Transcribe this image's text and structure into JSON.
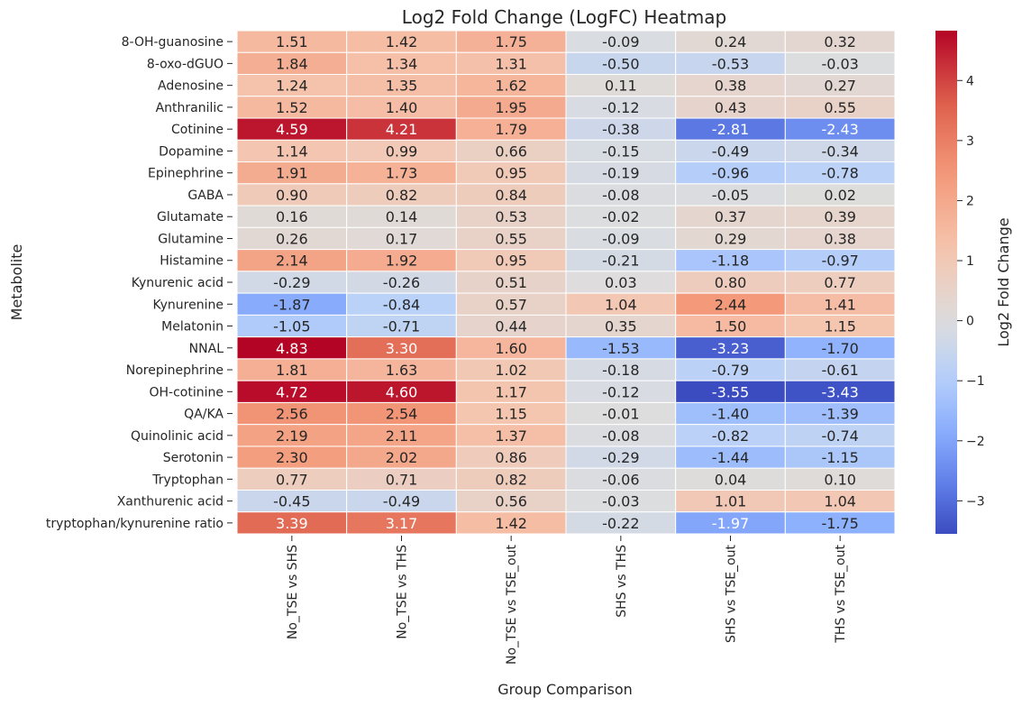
{
  "chart_data": {
    "type": "heatmap",
    "title": "Log2 Fold Change (LogFC) Heatmap",
    "xlabel": "Group Comparison",
    "ylabel": "Metabolite",
    "colorbar_label": "Log2 Fold Change",
    "colormap": "coolwarm",
    "colorbar_range": [
      -3.55,
      4.83
    ],
    "colorbar_center": 0,
    "colorbar_ticks": [
      -3,
      -2,
      -1,
      0,
      1,
      2,
      3,
      4
    ],
    "colorbar_tick_labels": [
      "−3",
      "−2",
      "−1",
      "0",
      "1",
      "2",
      "3",
      "4"
    ],
    "columns": [
      "No_TSE vs SHS",
      "No_TSE vs THS",
      "No_TSE vs TSE_out",
      "SHS vs THS",
      "SHS vs TSE_out",
      "THS vs TSE_out"
    ],
    "rows": [
      "8-OH-guanosine",
      "8-oxo-dGUO",
      "Adenosine",
      "Anthranilic",
      "Cotinine",
      "Dopamine",
      "Epinephrine",
      "GABA",
      "Glutamate",
      "Glutamine",
      "Histamine",
      "Kynurenic acid",
      "Kynurenine",
      "Melatonin",
      "NNAL",
      "Norepinephrine",
      "OH-cotinine",
      "QA/KA",
      "Quinolinic acid",
      "Serotonin",
      "Tryptophan",
      "Xanthurenic acid",
      "tryptophan/kynurenine ratio"
    ],
    "values": [
      [
        1.51,
        1.42,
        1.75,
        -0.09,
        0.24,
        0.32
      ],
      [
        1.84,
        1.34,
        1.31,
        -0.5,
        -0.53,
        -0.03
      ],
      [
        1.24,
        1.35,
        1.62,
        0.11,
        0.38,
        0.27
      ],
      [
        1.52,
        1.4,
        1.95,
        -0.12,
        0.43,
        0.55
      ],
      [
        4.59,
        4.21,
        1.79,
        -0.38,
        -2.81,
        -2.43
      ],
      [
        1.14,
        0.99,
        0.66,
        -0.15,
        -0.49,
        -0.34
      ],
      [
        1.91,
        1.73,
        0.95,
        -0.19,
        -0.96,
        -0.78
      ],
      [
        0.9,
        0.82,
        0.84,
        -0.08,
        -0.05,
        0.02
      ],
      [
        0.16,
        0.14,
        0.53,
        -0.02,
        0.37,
        0.39
      ],
      [
        0.26,
        0.17,
        0.55,
        -0.09,
        0.29,
        0.38
      ],
      [
        2.14,
        1.92,
        0.95,
        -0.21,
        -1.18,
        -0.97
      ],
      [
        -0.29,
        -0.26,
        0.51,
        0.03,
        0.8,
        0.77
      ],
      [
        -1.87,
        -0.84,
        0.57,
        1.04,
        2.44,
        1.41
      ],
      [
        -1.05,
        -0.71,
        0.44,
        0.35,
        1.5,
        1.15
      ],
      [
        4.83,
        3.3,
        1.6,
        -1.53,
        -3.23,
        -1.7
      ],
      [
        1.81,
        1.63,
        1.02,
        -0.18,
        -0.79,
        -0.61
      ],
      [
        4.72,
        4.6,
        1.17,
        -0.12,
        -3.55,
        -3.43
      ],
      [
        2.56,
        2.54,
        1.15,
        -0.01,
        -1.4,
        -1.39
      ],
      [
        2.19,
        2.11,
        1.37,
        -0.08,
        -0.82,
        -0.74
      ],
      [
        2.3,
        2.02,
        0.86,
        -0.29,
        -1.44,
        -1.15
      ],
      [
        0.77,
        0.71,
        0.82,
        -0.06,
        0.04,
        0.1
      ],
      [
        -0.45,
        -0.49,
        0.56,
        -0.03,
        1.01,
        1.04
      ],
      [
        3.39,
        3.17,
        1.42,
        -0.22,
        -1.97,
        -1.75
      ]
    ],
    "annotation_format": "0.00",
    "grid": false
  }
}
